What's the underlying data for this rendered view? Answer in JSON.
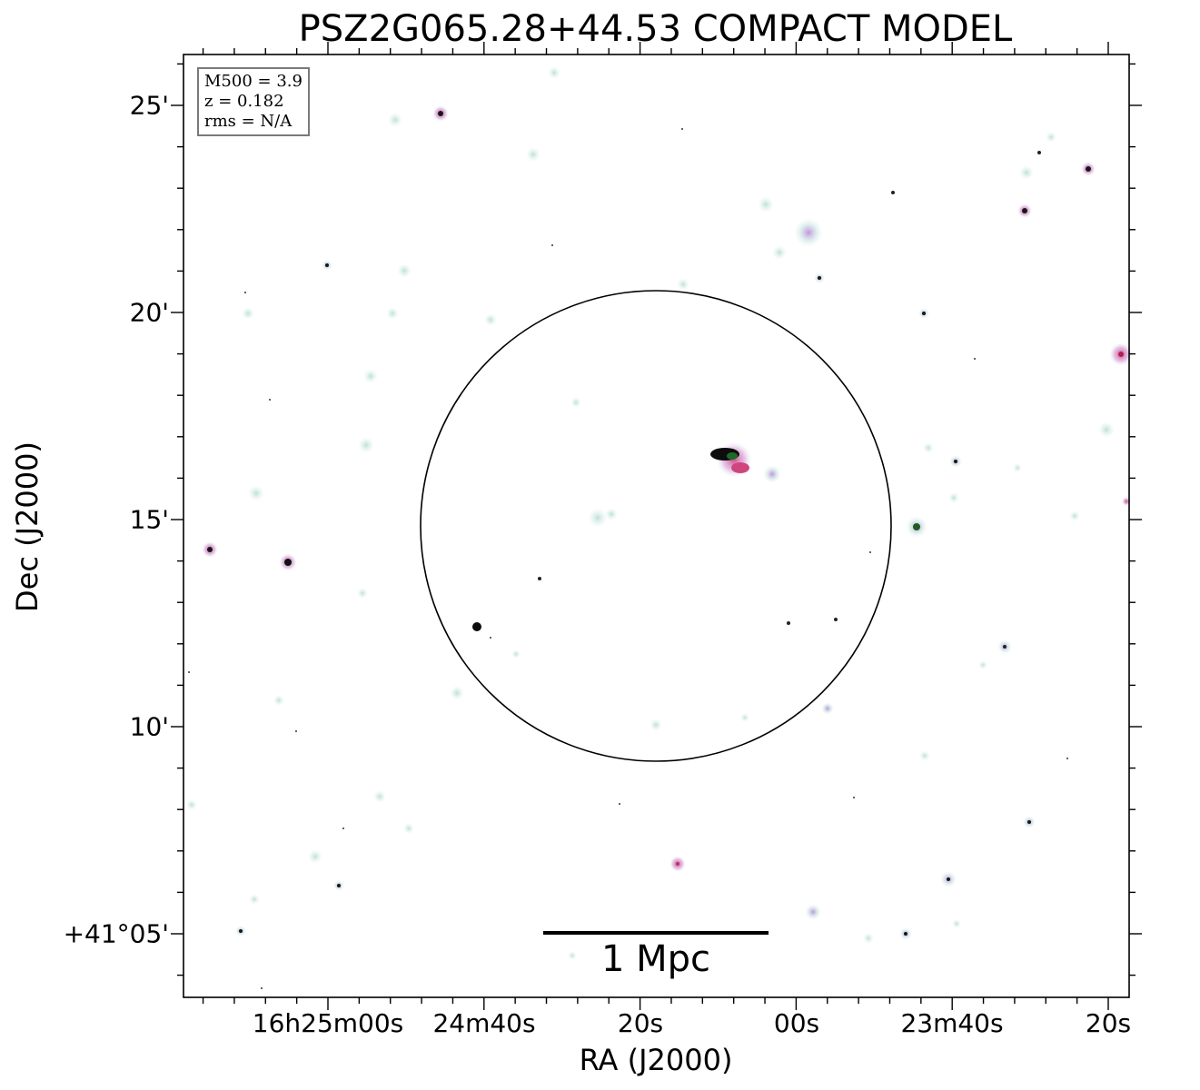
{
  "title": "PSZ2G065.28+44.53 COMPACT MODEL",
  "axes": {
    "xlabel": "RA (J2000)",
    "ylabel": "Dec (J2000)",
    "x_ticks": [
      "16h25m00s",
      "24m40s",
      "20s",
      "00s",
      "23m40s",
      "20s"
    ],
    "y_ticks": [
      "25'",
      "20'",
      "15'",
      "10'",
      "+41°05'"
    ]
  },
  "info_box": {
    "m500": "M500 = 3.9",
    "z": "z = 0.182",
    "rms": "rms = N/A"
  },
  "scale_bar": {
    "label": "1 Mpc"
  },
  "colors": {
    "background": "#ffffff",
    "faint_source": "#cfe8e2",
    "source_halo": "#c9a6e0",
    "source_core_red": "#c0306a",
    "source_core_dark": "#101010",
    "circle": "#000000"
  }
}
